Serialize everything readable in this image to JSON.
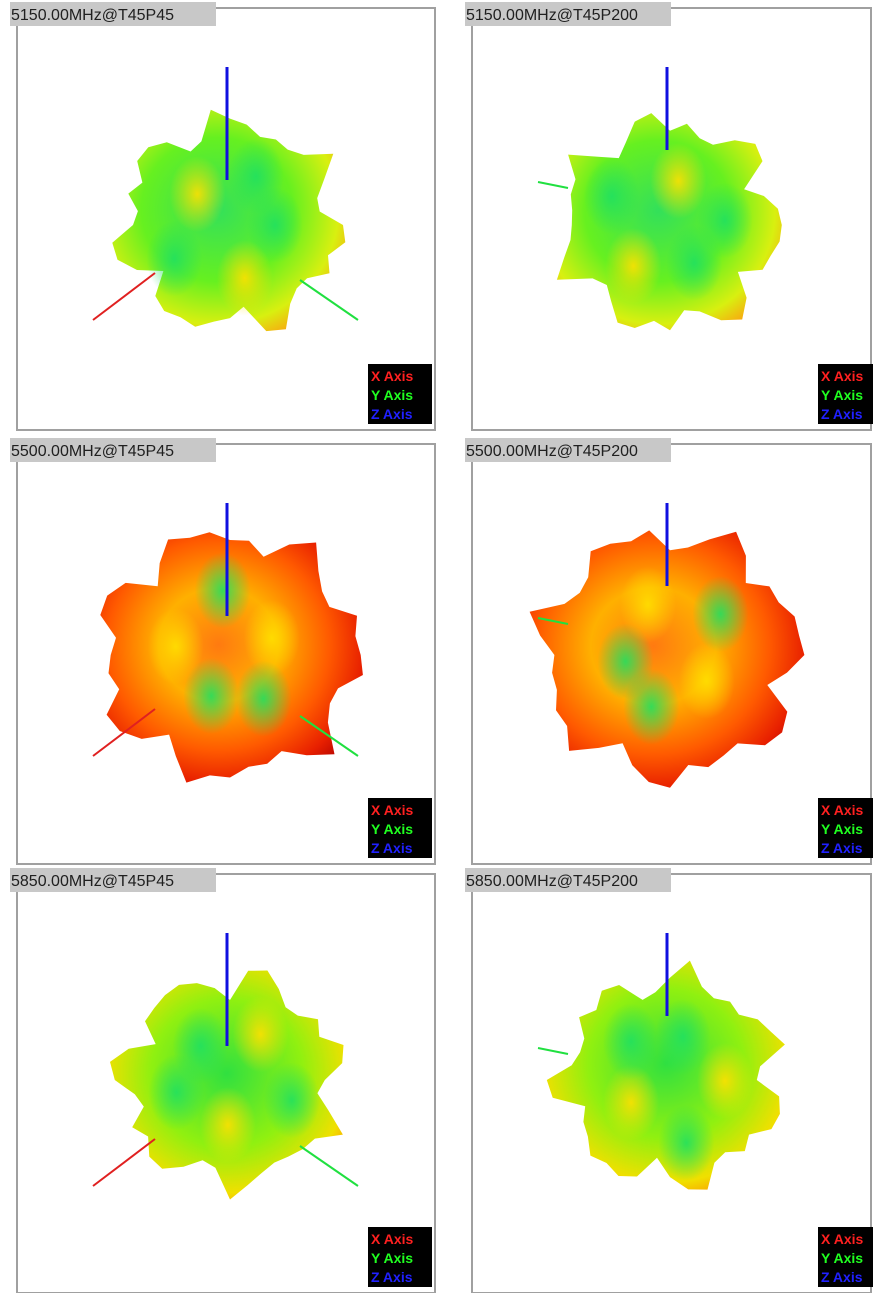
{
  "panels": [
    {
      "title": "5150.00MHz@T45P45"
    },
    {
      "title": "5150.00MHz@T45P200"
    },
    {
      "title": "5500.00MHz@T45P45"
    },
    {
      "title": "5500.00MHz@T45P200"
    },
    {
      "title": "5850.00MHz@T45P45"
    },
    {
      "title": "5850.00MHz@T45P200"
    }
  ],
  "legend": [
    "X Axis",
    "Y Axis",
    "Z Axis"
  ]
}
